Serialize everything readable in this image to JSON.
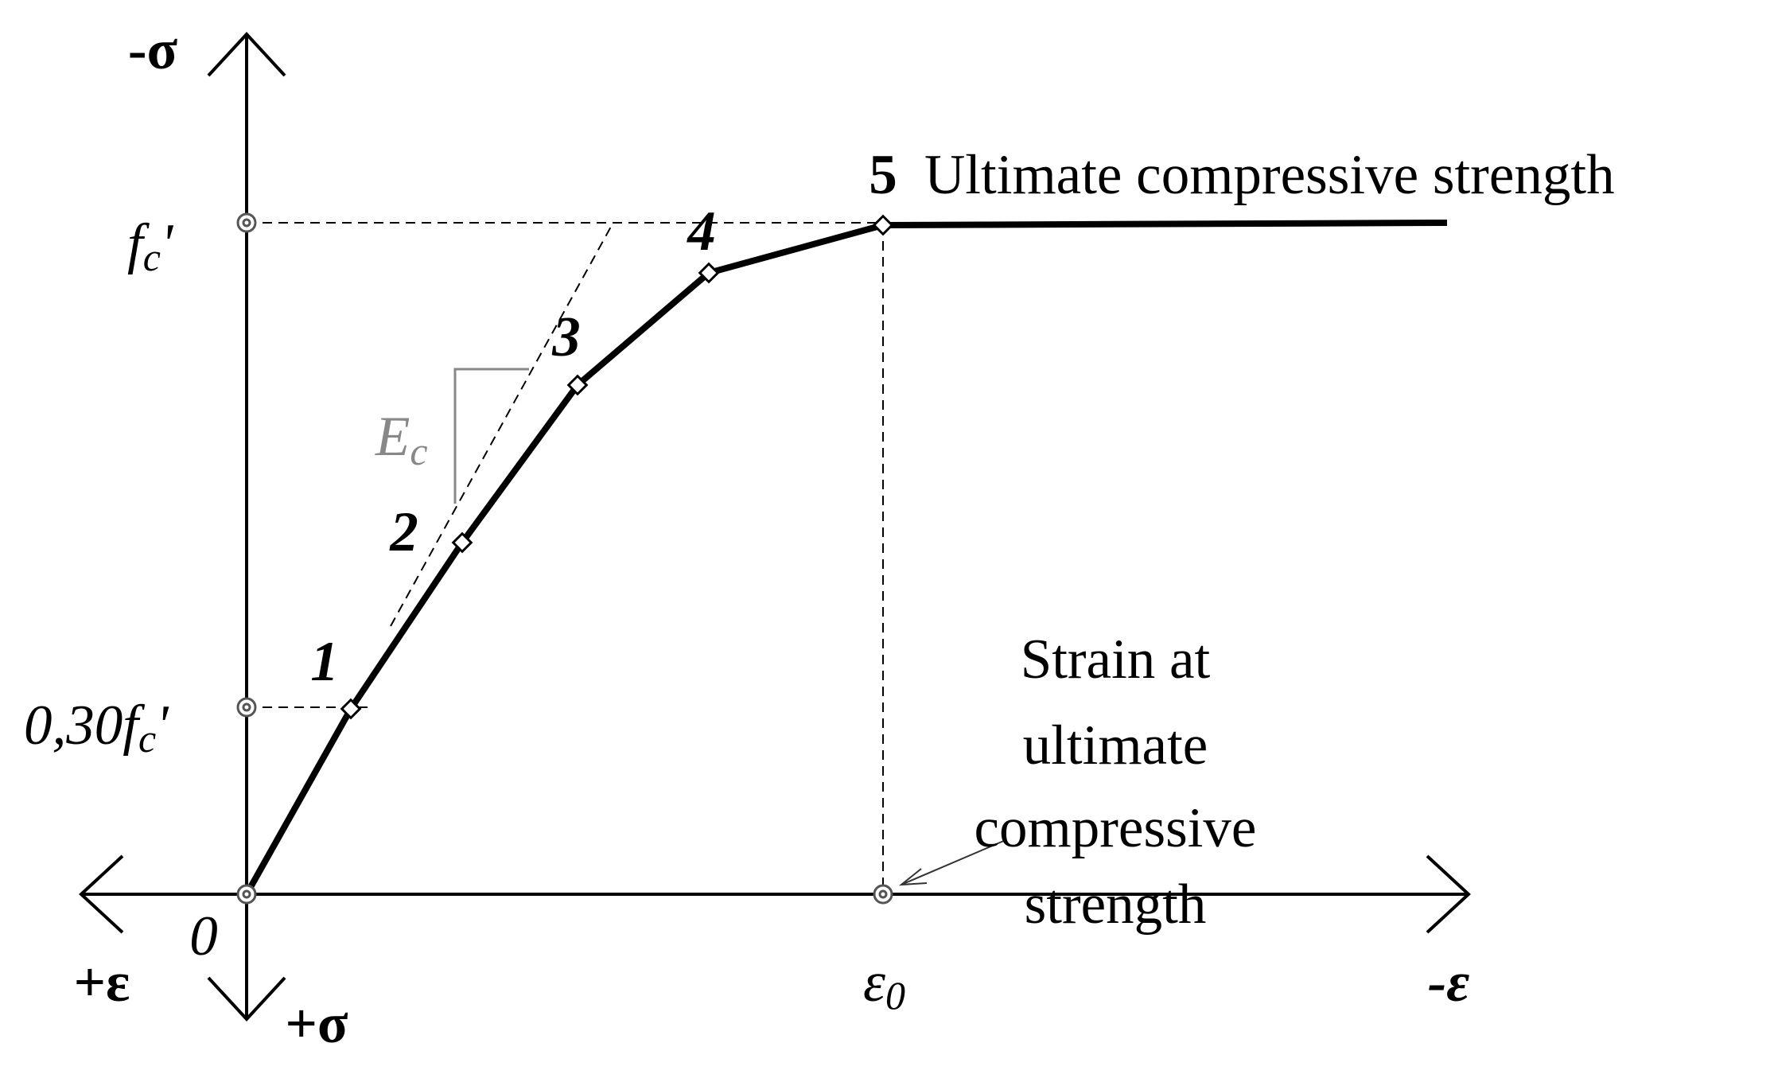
{
  "axes": {
    "y_top": "-σ",
    "y_bottom": "+σ",
    "x_left": "+ε",
    "x_right": "-ε",
    "origin": "0"
  },
  "levels": {
    "fc": {
      "main": "f",
      "sub": "c",
      "prime": "'"
    },
    "fc30": {
      "main": "0,30f",
      "sub": "c",
      "prime": "'"
    }
  },
  "strain": {
    "main": "ε",
    "sub": "0"
  },
  "modulus": {
    "main": "E",
    "sub": "c"
  },
  "points": [
    "1",
    "2",
    "3",
    "4",
    "5"
  ],
  "peak_label": "Ultimate compressive strength",
  "strain_note": [
    "Strain at",
    "ultimate",
    "compressive",
    "strength"
  ]
}
